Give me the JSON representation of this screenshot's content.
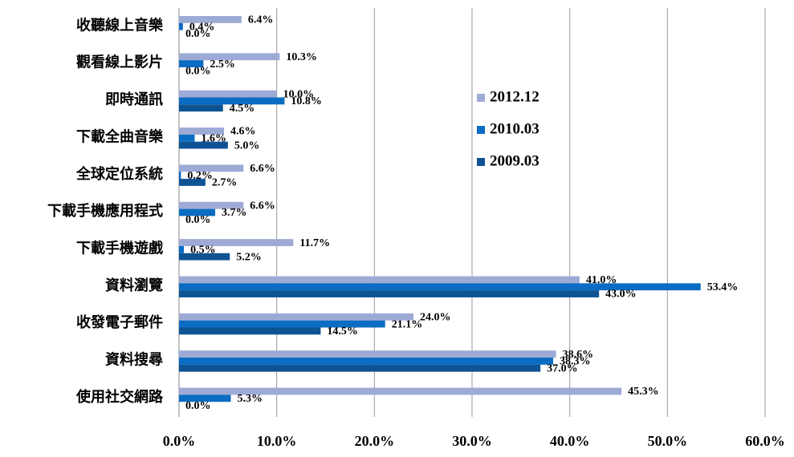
{
  "chart_data": {
    "type": "bar",
    "orientation": "horizontal",
    "categories": [
      "收聽線上音樂",
      "觀看線上影片",
      "即時通訊",
      "下載全曲音樂",
      "全球定位系統",
      "下載手機應用程式",
      "下載手機遊戲",
      "資料瀏覽",
      "收發電子郵件",
      "資料搜尋",
      "使用社交網路"
    ],
    "series": [
      {
        "name": "2012.12",
        "color": "#9eaad6",
        "values": [
          6.4,
          10.3,
          10.0,
          4.6,
          6.6,
          6.6,
          11.7,
          41.0,
          24.0,
          38.6,
          45.3
        ],
        "value_labels": [
          "6.4%",
          "10.3%",
          "10.0%",
          "4.6%",
          "6.6%",
          "6.6%",
          "11.7%",
          "41.0%",
          "24.0%",
          "38.6%",
          "45.3%"
        ]
      },
      {
        "name": "2010.03",
        "color": "#0a6cc2",
        "values": [
          0.4,
          2.5,
          10.8,
          1.6,
          0.2,
          3.7,
          0.5,
          53.4,
          21.1,
          38.3,
          5.3
        ],
        "value_labels": [
          "0.4%",
          "2.5%",
          "10.8%",
          "1.6%",
          "0.2%",
          "3.7%",
          "0.5%",
          "53.4%",
          "21.1%",
          "38.3%",
          "5.3%"
        ]
      },
      {
        "name": "2009.03",
        "color": "#0e5394",
        "values": [
          0.0,
          0.0,
          4.5,
          5.0,
          2.7,
          0.0,
          5.2,
          43.0,
          14.5,
          37.0,
          0.0
        ],
        "value_labels": [
          "0.0%",
          "0.0%",
          "4.5%",
          "5.0%",
          "2.7%",
          "0.0%",
          "5.2%",
          "43.0%",
          "14.5%",
          "37.0%",
          "0.0%"
        ]
      }
    ],
    "xlim": [
      0,
      60
    ],
    "xticks": [
      {
        "value": 0,
        "label": "0.0%"
      },
      {
        "value": 10,
        "label": "10.0%"
      },
      {
        "value": 20,
        "label": "20.0%"
      },
      {
        "value": 30,
        "label": "30.0%"
      },
      {
        "value": 40,
        "label": "40.0%"
      },
      {
        "value": 50,
        "label": "50.0%"
      },
      {
        "value": 60,
        "label": "60.0%"
      }
    ],
    "grid": true,
    "legend": "right"
  }
}
